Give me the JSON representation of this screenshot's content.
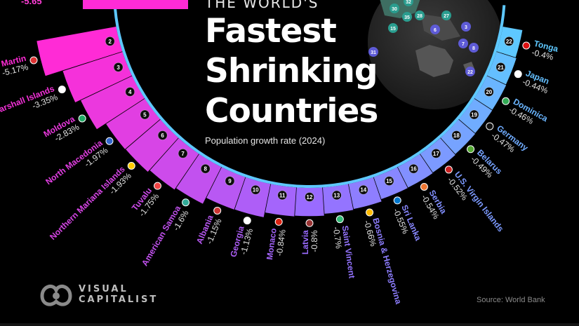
{
  "header": {
    "kicker": "THE WORLD'S",
    "title_lines": [
      "Fastest",
      "Shrinking",
      "Countries"
    ],
    "subtitle": "Population growth rate (2024)"
  },
  "source": "Source: World Bank",
  "brand": {
    "line1": "VISUAL",
    "line2": "CAPITALIST"
  },
  "top_value": "-5.65",
  "map_badges": [
    "32",
    "30",
    "28",
    "35",
    "15",
    "27",
    "6",
    "3",
    "7",
    "8",
    "22",
    "31"
  ],
  "chart_data": {
    "type": "bar",
    "layout": "radial",
    "value_unit": "%",
    "series": [
      {
        "rank": 2,
        "name": "Saint Martin",
        "value": -5.17
      },
      {
        "rank": 3,
        "name": "Marshall Islands",
        "value": -3.35
      },
      {
        "rank": 4,
        "name": "Moldova",
        "value": -2.83
      },
      {
        "rank": 5,
        "name": "North Macedonia",
        "value": -1.97
      },
      {
        "rank": 6,
        "name": "Northern Mariana Islands",
        "value": -1.93
      },
      {
        "rank": 7,
        "name": "Tuvalu",
        "value": -1.75
      },
      {
        "rank": 8,
        "name": "American Samoa",
        "value": -1.6
      },
      {
        "rank": 9,
        "name": "Albania",
        "value": -1.15
      },
      {
        "rank": 10,
        "name": "Georgia",
        "value": -1.13
      },
      {
        "rank": 11,
        "name": "Monaco",
        "value": -0.84
      },
      {
        "rank": 12,
        "name": "Latvia",
        "value": -0.8
      },
      {
        "rank": 13,
        "name": "Saint Vincent",
        "value": -0.7
      },
      {
        "rank": 14,
        "name": "Bosnia & Herzegovina",
        "value": -0.66
      },
      {
        "rank": 15,
        "name": "Sri Lanka",
        "value": -0.55
      },
      {
        "rank": 16,
        "name": "Serbia",
        "value": -0.54
      },
      {
        "rank": 17,
        "name": "U.S. Virgin Islands",
        "value": -0.52
      },
      {
        "rank": 18,
        "name": "Belarus",
        "value": -0.49
      },
      {
        "rank": 19,
        "name": "Germany",
        "value": -0.47
      },
      {
        "rank": 20,
        "name": "Dominica",
        "value": -0.46
      },
      {
        "rank": 21,
        "name": "Japan",
        "value": -0.44
      },
      {
        "rank": 22,
        "name": "Tonga",
        "value": -0.4
      }
    ],
    "colors": {
      "start": "#ff2bd6",
      "mid": "#9a6bff",
      "end": "#5ec8ff"
    }
  }
}
